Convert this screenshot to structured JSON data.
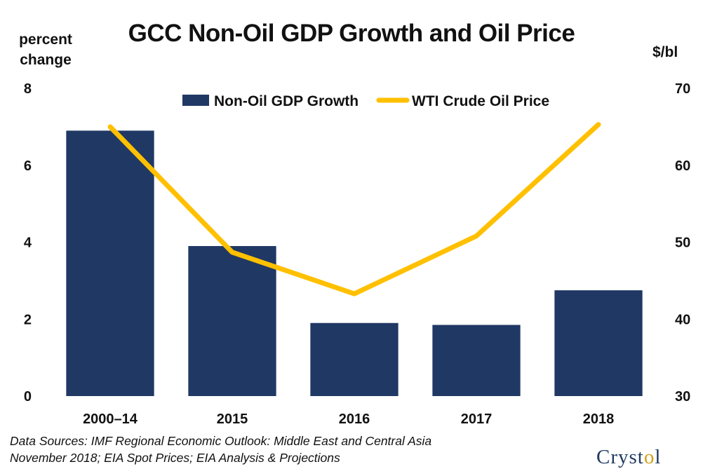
{
  "title": "GCC Non-Oil GDP Growth and Oil Price",
  "left_axis_title": [
    "percent",
    "change"
  ],
  "right_axis_title": "$/bl",
  "source_lines": [
    "Data Sources: IMF Regional Economic Outlook: Middle East and Central Asia",
    "November 2018; EIA Spot Prices; EIA Analysis & Projections"
  ],
  "logo": {
    "text_before": "Cryst",
    "text_o": "o",
    "text_after": "l"
  },
  "colors": {
    "bar": "#203864",
    "line": "#ffc000",
    "text": "#111111"
  },
  "chart_data": {
    "type": "bar",
    "title": "GCC Non-Oil GDP Growth and Oil Price",
    "categories": [
      "2000–14",
      "2015",
      "2016",
      "2017",
      "2018"
    ],
    "series": [
      {
        "name": "Non-Oil GDP Growth",
        "type": "bar",
        "axis": "left",
        "values": [
          6.9,
          3.9,
          1.9,
          1.85,
          2.75
        ]
      },
      {
        "name": "WTI Crude Oil Price",
        "type": "line",
        "axis": "right",
        "values": [
          65,
          48.7,
          43.3,
          50.8,
          65.3
        ]
      }
    ],
    "left_axis": {
      "ylim": [
        0,
        8
      ],
      "ticks": [
        0,
        2,
        4,
        6,
        8
      ]
    },
    "right_axis": {
      "ylim": [
        30,
        70
      ],
      "ticks": [
        30,
        40,
        50,
        60,
        70
      ]
    },
    "legend_position": "top-center",
    "grid": false
  }
}
